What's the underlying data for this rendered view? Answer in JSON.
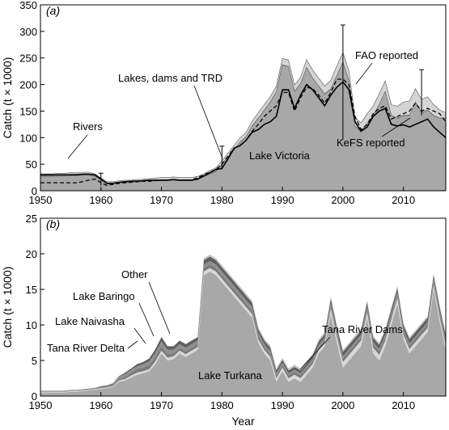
{
  "chart_data": [
    {
      "type": "area",
      "panel_label": "(a)",
      "xlabel": "",
      "ylabel": "Catch (t × 1000)",
      "xlim": [
        1950,
        2017
      ],
      "ylim": [
        0,
        350
      ],
      "xticks": [
        1950,
        1960,
        1970,
        1980,
        1990,
        2000,
        2010
      ],
      "yticks": [
        0,
        50,
        100,
        150,
        200,
        250,
        300,
        350
      ],
      "x": [
        1950,
        1951,
        1952,
        1953,
        1954,
        1955,
        1956,
        1957,
        1958,
        1959,
        1960,
        1961,
        1962,
        1963,
        1964,
        1965,
        1966,
        1967,
        1968,
        1969,
        1970,
        1971,
        1972,
        1973,
        1974,
        1975,
        1976,
        1977,
        1978,
        1979,
        1980,
        1981,
        1982,
        1983,
        1984,
        1985,
        1986,
        1987,
        1988,
        1989,
        1990,
        1991,
        1992,
        1993,
        1994,
        1995,
        1996,
        1997,
        1998,
        1999,
        2000,
        2001,
        2002,
        2003,
        2004,
        2005,
        2006,
        2007,
        2008,
        2009,
        2010,
        2011,
        2012,
        2013,
        2014,
        2015,
        2016,
        2017
      ],
      "series": [
        {
          "name": "Lake Victoria",
          "values": [
            25,
            25,
            25,
            26,
            26,
            27,
            27,
            28,
            28,
            25,
            18,
            12,
            12,
            14,
            15,
            15,
            16,
            17,
            17,
            18,
            18,
            18,
            19,
            18,
            18,
            18,
            20,
            25,
            30,
            35,
            48,
            62,
            75,
            90,
            100,
            120,
            135,
            150,
            165,
            185,
            235,
            232,
            185,
            200,
            230,
            210,
            195,
            180,
            190,
            215,
            240,
            205,
            120,
            110,
            125,
            140,
            160,
            185,
            140,
            135,
            140,
            140,
            165,
            145,
            150,
            140,
            135,
            135
          ]
        },
        {
          "name": "Rivers",
          "values": [
            4,
            4,
            4,
            4,
            4,
            4,
            4,
            4,
            4,
            4,
            3,
            2,
            2,
            2,
            2,
            2,
            2,
            2,
            2,
            2,
            2,
            2,
            2,
            2,
            2,
            2,
            2,
            2,
            2,
            2,
            2,
            2,
            2,
            2,
            2,
            2,
            2,
            2,
            2,
            2,
            2,
            2,
            2,
            2,
            2,
            2,
            2,
            2,
            2,
            2,
            2,
            2,
            2,
            2,
            2,
            2,
            2,
            2,
            2,
            2,
            2,
            2,
            2,
            2,
            2,
            2,
            2,
            2
          ]
        },
        {
          "name": "Lakes, dams and TRD",
          "values": [
            3,
            3,
            3,
            3,
            3,
            3,
            3,
            3,
            3,
            3,
            3,
            3,
            3,
            3,
            3,
            3,
            3,
            3,
            4,
            4,
            5,
            5,
            5,
            5,
            5,
            5,
            5,
            5,
            6,
            6,
            6,
            7,
            8,
            8,
            8,
            9,
            10,
            10,
            10,
            10,
            12,
            12,
            12,
            12,
            15,
            15,
            15,
            15,
            16,
            18,
            18,
            18,
            16,
            16,
            18,
            18,
            20,
            20,
            20,
            22,
            25,
            27,
            25,
            25,
            25,
            20,
            15,
            10
          ]
        }
      ],
      "lines": [
        {
          "name": "KeFS reported",
          "style": "solid",
          "values": [
            30,
            30,
            30,
            30,
            30,
            30,
            30,
            31,
            31,
            30,
            22,
            14,
            14,
            16,
            17,
            18,
            18,
            19,
            20,
            20,
            20,
            20,
            21,
            20,
            20,
            20,
            22,
            28,
            34,
            40,
            42,
            60,
            80,
            85,
            95,
            110,
            115,
            125,
            130,
            140,
            190,
            190,
            155,
            180,
            200,
            190,
            175,
            160,
            180,
            195,
            205,
            190,
            130,
            112,
            120,
            140,
            150,
            155,
            125,
            122,
            124,
            120,
            125,
            130,
            135,
            120,
            110,
            100
          ]
        },
        {
          "name": "FAO reported",
          "style": "dashed",
          "values": [
            15,
            15,
            15,
            15,
            15,
            15,
            15,
            17,
            20,
            22,
            15,
            10,
            12,
            14,
            15,
            16,
            17,
            18,
            18,
            19,
            20,
            20,
            21,
            20,
            20,
            20,
            25,
            30,
            35,
            40,
            50,
            65,
            80,
            85,
            95,
            112,
            125,
            140,
            150,
            160,
            185,
            185,
            150,
            175,
            195,
            192,
            180,
            165,
            185,
            210,
            210,
            200,
            140,
            115,
            125,
            145,
            155,
            160,
            135,
            140,
            145,
            150,
            165,
            150,
            155,
            150,
            145,
            130
          ]
        }
      ],
      "error_bars": [
        {
          "x": 1960,
          "y": 21,
          "low": 10,
          "high": 33
        },
        {
          "x": 1980,
          "y": 62,
          "low": 40,
          "high": 84
        },
        {
          "x": 2000,
          "y": 204,
          "low": 96,
          "high": 312
        },
        {
          "x": 2013,
          "y": 185,
          "low": 142,
          "high": 228
        }
      ],
      "annotations": [
        "Rivers",
        "Lakes, dams and TRD",
        "FAO reported",
        "KeFS reported",
        "Lake Victoria"
      ],
      "grid": false
    },
    {
      "type": "area",
      "panel_label": "(b)",
      "xlabel": "Year",
      "ylabel": "Catch (t × 1000)",
      "xlim": [
        1950,
        2017
      ],
      "ylim": [
        0,
        25
      ],
      "xticks": [
        1950,
        1960,
        1970,
        1980,
        1990,
        2000,
        2010
      ],
      "yticks": [
        0,
        5,
        10,
        15,
        20,
        25
      ],
      "x": [
        1950,
        1951,
        1952,
        1953,
        1954,
        1955,
        1956,
        1957,
        1958,
        1959,
        1960,
        1961,
        1962,
        1963,
        1964,
        1965,
        1966,
        1967,
        1968,
        1969,
        1970,
        1971,
        1972,
        1973,
        1974,
        1975,
        1976,
        1977,
        1978,
        1979,
        1980,
        1981,
        1982,
        1983,
        1984,
        1985,
        1986,
        1987,
        1988,
        1989,
        1990,
        1991,
        1992,
        1993,
        1994,
        1995,
        1996,
        1997,
        1998,
        1999,
        2000,
        2001,
        2002,
        2003,
        2004,
        2005,
        2006,
        2007,
        2008,
        2009,
        2010,
        2011,
        2012,
        2013,
        2014,
        2015,
        2016,
        2017
      ],
      "series": [
        {
          "name": "Lake Turkana",
          "values": [
            0.5,
            0.5,
            0.5,
            0.5,
            0.5,
            0.6,
            0.6,
            0.7,
            0.8,
            0.9,
            1.0,
            1.1,
            1.3,
            2.0,
            2.2,
            2.6,
            3.0,
            3.2,
            3.5,
            4.5,
            6.0,
            5.0,
            5.2,
            6.0,
            5.5,
            6.0,
            6.5,
            17.0,
            17.5,
            17.0,
            16.0,
            15.0,
            14.0,
            13.0,
            12.0,
            11.0,
            7.5,
            6.0,
            5.0,
            2.0,
            3.5,
            2.0,
            2.5,
            2.0,
            3.0,
            4.0,
            6.0,
            7.0,
            11.5,
            7.5,
            4.0,
            5.0,
            6.0,
            7.0,
            11.0,
            6.0,
            5.0,
            7.0,
            10.0,
            13.0,
            8.0,
            6.0,
            7.0,
            8.0,
            9.0,
            15.0,
            10.5,
            6.5
          ]
        },
        {
          "name": "Tana River Delta",
          "values": [
            0.1,
            0.1,
            0.1,
            0.1,
            0.1,
            0.1,
            0.1,
            0.1,
            0.1,
            0.1,
            0.1,
            0.1,
            0.1,
            0.2,
            0.2,
            0.3,
            0.3,
            0.3,
            0.3,
            0.4,
            0.4,
            0.4,
            0.4,
            0.4,
            0.4,
            0.4,
            0.4,
            0.5,
            0.5,
            0.5,
            0.5,
            0.5,
            0.5,
            0.5,
            0.5,
            0.5,
            0.5,
            0.5,
            0.5,
            0.5,
            0.5,
            0.5,
            0.5,
            0.5,
            0.5,
            0.5,
            0.5,
            0.5,
            0.8,
            0.8,
            0.8,
            0.8,
            0.8,
            0.8,
            0.8,
            0.8,
            0.8,
            0.8,
            0.8,
            0.8,
            0.6,
            0.6,
            0.6,
            0.6,
            0.6,
            0.6,
            0.6,
            0.6
          ]
        },
        {
          "name": "Lake Naivasha",
          "values": [
            0.05,
            0.05,
            0.05,
            0.05,
            0.05,
            0.05,
            0.05,
            0.05,
            0.05,
            0.05,
            0.1,
            0.1,
            0.1,
            0.2,
            0.3,
            0.4,
            0.5,
            0.5,
            0.6,
            0.6,
            0.6,
            0.5,
            0.4,
            0.4,
            0.4,
            0.4,
            0.4,
            0.5,
            0.5,
            0.5,
            0.5,
            0.5,
            0.5,
            0.5,
            0.5,
            0.5,
            0.5,
            0.4,
            0.4,
            0.4,
            0.4,
            0.4,
            0.4,
            0.4,
            0.4,
            0.4,
            0.4,
            0.4,
            0.5,
            0.5,
            0.5,
            0.5,
            0.5,
            0.5,
            0.5,
            0.5,
            0.5,
            0.5,
            0.5,
            0.5,
            0.5,
            0.5,
            0.5,
            0.5,
            0.5,
            0.5,
            0.5,
            0.5
          ]
        },
        {
          "name": "Lake Baringo",
          "values": [
            0.05,
            0.05,
            0.05,
            0.05,
            0.05,
            0.05,
            0.05,
            0.05,
            0.05,
            0.05,
            0.1,
            0.1,
            0.2,
            0.3,
            0.4,
            0.4,
            0.4,
            0.5,
            0.5,
            0.6,
            0.7,
            0.6,
            0.5,
            0.5,
            0.5,
            0.5,
            0.5,
            0.5,
            0.5,
            0.5,
            0.5,
            0.5,
            0.5,
            0.5,
            0.5,
            0.5,
            0.4,
            0.4,
            0.4,
            0.3,
            0.3,
            0.3,
            0.3,
            0.3,
            0.3,
            0.3,
            0.3,
            0.3,
            0.3,
            0.3,
            0.3,
            0.3,
            0.3,
            0.3,
            0.3,
            0.3,
            0.3,
            0.3,
            0.3,
            0.3,
            0.3,
            0.3,
            0.3,
            0.3,
            0.3,
            0.3,
            0.3,
            0.3
          ]
        },
        {
          "name": "Other",
          "values": [
            0.05,
            0.05,
            0.05,
            0.05,
            0.05,
            0.05,
            0.05,
            0.05,
            0.05,
            0.05,
            0.1,
            0.1,
            0.1,
            0.1,
            0.2,
            0.2,
            0.3,
            0.3,
            0.4,
            0.5,
            0.6,
            0.5,
            0.5,
            0.5,
            0.5,
            0.5,
            0.5,
            0.6,
            0.6,
            0.6,
            0.6,
            0.6,
            0.6,
            0.6,
            0.6,
            0.6,
            0.5,
            0.5,
            0.5,
            0.4,
            0.4,
            0.4,
            0.4,
            0.4,
            0.4,
            0.5,
            0.5,
            0.5,
            0.6,
            0.6,
            0.6,
            0.6,
            0.6,
            0.6,
            0.6,
            0.6,
            0.6,
            0.6,
            0.6,
            0.6,
            0.6,
            0.6,
            0.6,
            0.6,
            0.6,
            0.6,
            0.6,
            0.6
          ]
        },
        {
          "name": "Tana River Dams",
          "values": [
            0,
            0,
            0,
            0,
            0,
            0,
            0,
            0,
            0,
            0,
            0,
            0,
            0,
            0,
            0,
            0,
            0,
            0,
            0,
            0,
            0,
            0,
            0,
            0,
            0,
            0,
            0,
            0.3,
            0.3,
            0.3,
            0.3,
            0.3,
            0.3,
            0.3,
            0.3,
            0.3,
            0.3,
            0.3,
            0.3,
            0.3,
            0.3,
            0.3,
            0.3,
            0.3,
            0.3,
            0.3,
            0.3,
            0.3,
            0.3,
            0.3,
            0.3,
            0.3,
            0.3,
            0.3,
            0.3,
            0.3,
            0.3,
            0.3,
            0.3,
            0.3,
            0.3,
            0.3,
            0.3,
            0.3,
            0.3,
            0.3,
            0.3,
            0.3
          ]
        }
      ],
      "annotations": [
        "Tana River Delta",
        "Lake Naivasha",
        "Lake Baringo",
        "Other",
        "Tana River Dams",
        "Lake Turkana"
      ],
      "grid": false
    }
  ]
}
